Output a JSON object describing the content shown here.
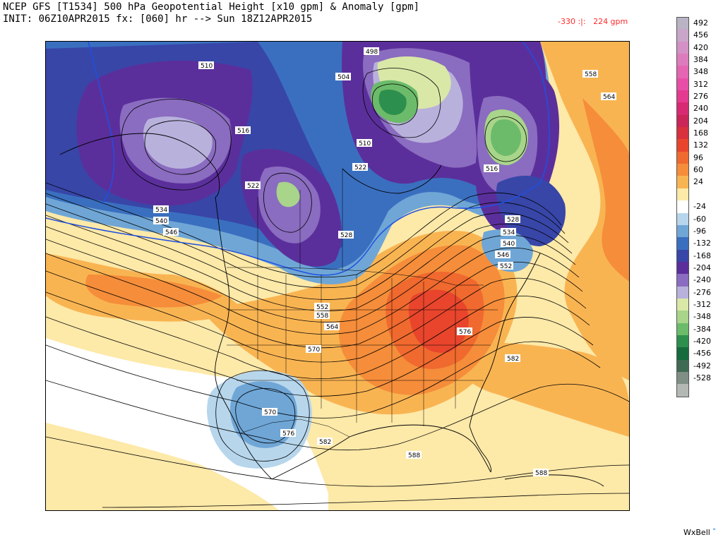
{
  "header": {
    "title_line": "NCEP GFS [T1534] 500 hPa Geopotential Height [x10 gpm] & Anomaly [gpm]",
    "init_line": "INIT: 06Z10APR2015 fx: [060] hr --> Sun 18Z12APR2015",
    "range_text": "-330 :|:   224 gpm"
  },
  "legend": {
    "title": "",
    "entries": [
      {
        "label": "492",
        "color": "#b9b3c4"
      },
      {
        "label": "456",
        "color": "#c8a6c9"
      },
      {
        "label": "420",
        "color": "#d391c6"
      },
      {
        "label": "384",
        "color": "#dd7cbd"
      },
      {
        "label": "348",
        "color": "#e565b3"
      },
      {
        "label": "312",
        "color": "#e84ea5"
      },
      {
        "label": "276",
        "color": "#e43a8f"
      },
      {
        "label": "240",
        "color": "#d82a73"
      },
      {
        "label": "204",
        "color": "#c92558"
      },
      {
        "label": "168",
        "color": "#d8303c"
      },
      {
        "label": "132",
        "color": "#e8452c"
      },
      {
        "label": "96",
        "color": "#f0692e"
      },
      {
        "label": "60",
        "color": "#f58d3a"
      },
      {
        "label": "24",
        "color": "#f9b452"
      },
      {
        "label": "",
        "color": "#fde9a8"
      },
      {
        "label": "-24",
        "color": "#ffffff"
      },
      {
        "label": "-60",
        "color": "#b7d6ec"
      },
      {
        "label": "-96",
        "color": "#6fa6d6"
      },
      {
        "label": "-132",
        "color": "#3a6fbf"
      },
      {
        "label": "-168",
        "color": "#3846a8"
      },
      {
        "label": "-204",
        "color": "#5b2f9b"
      },
      {
        "label": "-240",
        "color": "#8a6cc0"
      },
      {
        "label": "-276",
        "color": "#b8b1dc"
      },
      {
        "label": "-312",
        "color": "#d9e8a7"
      },
      {
        "label": "-348",
        "color": "#a8d58a"
      },
      {
        "label": "-384",
        "color": "#6cbb6a"
      },
      {
        "label": "-420",
        "color": "#2d8f4d"
      },
      {
        "label": "-456",
        "color": "#156b3c"
      },
      {
        "label": "-492",
        "color": "#3f6b55"
      },
      {
        "label": "-528",
        "color": "#7f8f86"
      },
      {
        "label": "",
        "color": "#b3b8b4"
      }
    ]
  },
  "map": {
    "contour_labels": [
      "510",
      "516",
      "522",
      "528",
      "534",
      "540",
      "546",
      "552",
      "558",
      "564",
      "570",
      "576",
      "582",
      "588",
      "498",
      "504",
      "510",
      "516",
      "522",
      "528",
      "534",
      "540",
      "546",
      "552",
      "558",
      "564",
      "570",
      "576",
      "582",
      "588"
    ],
    "palette": {
      "ocean_warm": "#f9b452",
      "anomaly_warm": "#f0692e",
      "anomaly_hot": "#e8452c",
      "anomaly_cold": "#3846a8",
      "anomaly_purple": "#5b2f9b",
      "lavender": "#8a6cc0",
      "blue": "#3a6fbf",
      "light_blue": "#b7d6ec",
      "green": "#6cbb6a",
      "light_green": "#a8d58a",
      "neutral": "#fde9a8",
      "white": "#ffffff",
      "coast": "#000000",
      "blue_line": "#1f4fe0"
    }
  },
  "branding": {
    "text": "WxBell",
    "mark": "°"
  }
}
